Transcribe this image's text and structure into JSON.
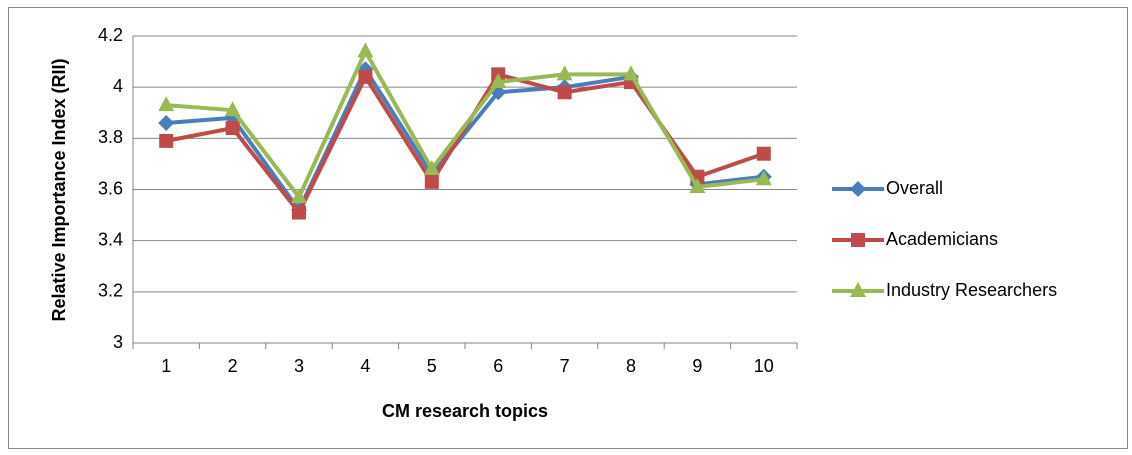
{
  "chart_data": {
    "type": "line",
    "x_label": "CM research topics",
    "y_label": "Relative Importance Index (RII)",
    "categories": [
      "1",
      "2",
      "3",
      "4",
      "5",
      "6",
      "7",
      "8",
      "9",
      "10"
    ],
    "series": [
      {
        "name": "Overall",
        "color": "#4a7ebb",
        "marker": "diamond",
        "values": [
          3.86,
          3.88,
          3.52,
          4.07,
          3.66,
          3.98,
          4.0,
          4.04,
          3.62,
          3.65
        ]
      },
      {
        "name": "Academicians",
        "color": "#be4b48",
        "marker": "square",
        "values": [
          3.79,
          3.84,
          3.51,
          4.04,
          3.63,
          4.05,
          3.98,
          4.02,
          3.65,
          3.74
        ]
      },
      {
        "name": "Industry Researchers",
        "color": "#98b954",
        "marker": "triangle",
        "values": [
          3.93,
          3.91,
          3.57,
          4.14,
          3.68,
          4.02,
          4.05,
          4.05,
          3.61,
          3.64
        ]
      }
    ],
    "ylim": [
      3,
      4.2
    ],
    "yticks": [
      3,
      3.2,
      3.4,
      3.6,
      3.8,
      4,
      4.2
    ],
    "grid": true,
    "legend": "right"
  }
}
